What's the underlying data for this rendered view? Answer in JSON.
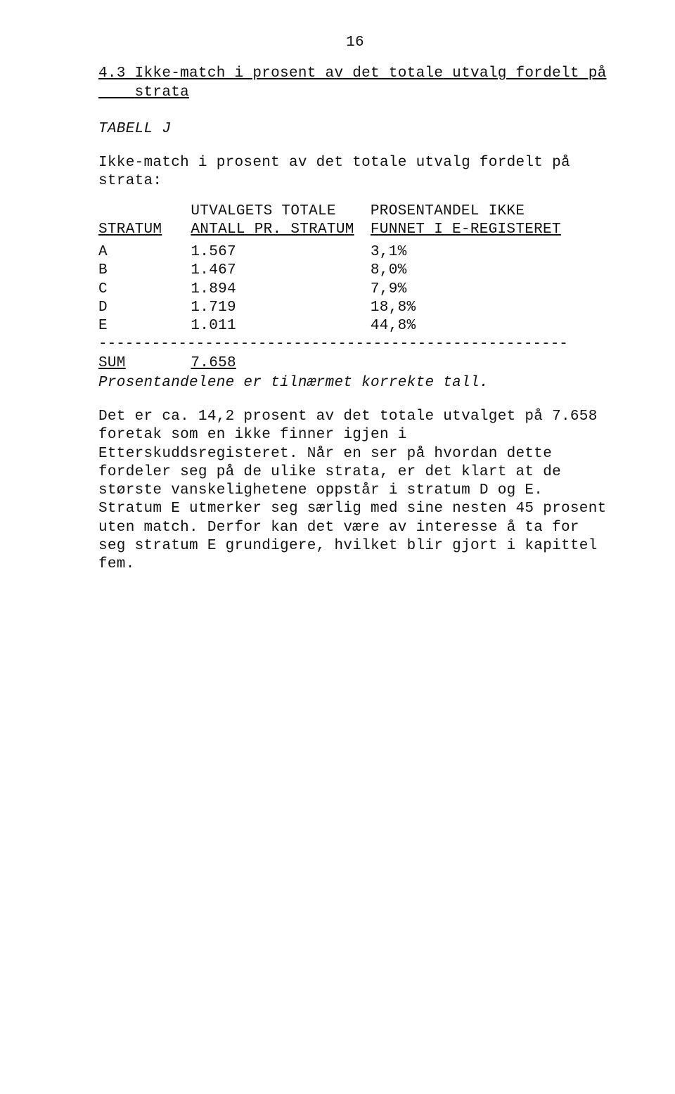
{
  "page_number": "16",
  "section": {
    "number_title": "4.3 Ikke-match i prosent av det totale utvalg fordelt på",
    "title_cont": "strata"
  },
  "table": {
    "name": "TABELL J",
    "caption": "Ikke-match i prosent av det totale utvalg fordelt på strata:",
    "header_top": {
      "c0": "",
      "c1": "UTVALGETS TOTALE",
      "c2": "PROSENTANDEL IKKE"
    },
    "header_bot": {
      "c0": "STRATUM",
      "c1": "ANTALL PR. STRATUM",
      "c2": "FUNNET I E-REGISTERET"
    },
    "rows": [
      {
        "s": "A",
        "v": "1.567",
        "p": "3,1%"
      },
      {
        "s": "B",
        "v": "1.467",
        "p": "8,0%"
      },
      {
        "s": "C",
        "v": "1.894",
        "p": "7,9%"
      },
      {
        "s": "D",
        "v": "1.719",
        "p": "18,8%"
      },
      {
        "s": "E",
        "v": "1.011",
        "p": "44,8%"
      }
    ],
    "dash": "-----------------------------------------------------",
    "sum": {
      "s": "SUM",
      "v": "7.658",
      "p": ""
    },
    "note": "Prosentandelene er tilnærmet korrekte tall."
  },
  "paragraph": "Det er ca. 14,2 prosent av det totale utvalget på 7.658 foretak som en ikke finner igjen i Etterskuddsregisteret. Når en ser på hvordan dette fordeler seg på de ulike strata, er det klart at de største vanskelighetene oppstår i stratum D og E. Stratum E utmerker seg særlig med sine nesten 45 prosent uten match. Derfor kan det være av interesse å ta for seg stratum E grundigere, hvilket blir gjort i kapittel fem."
}
